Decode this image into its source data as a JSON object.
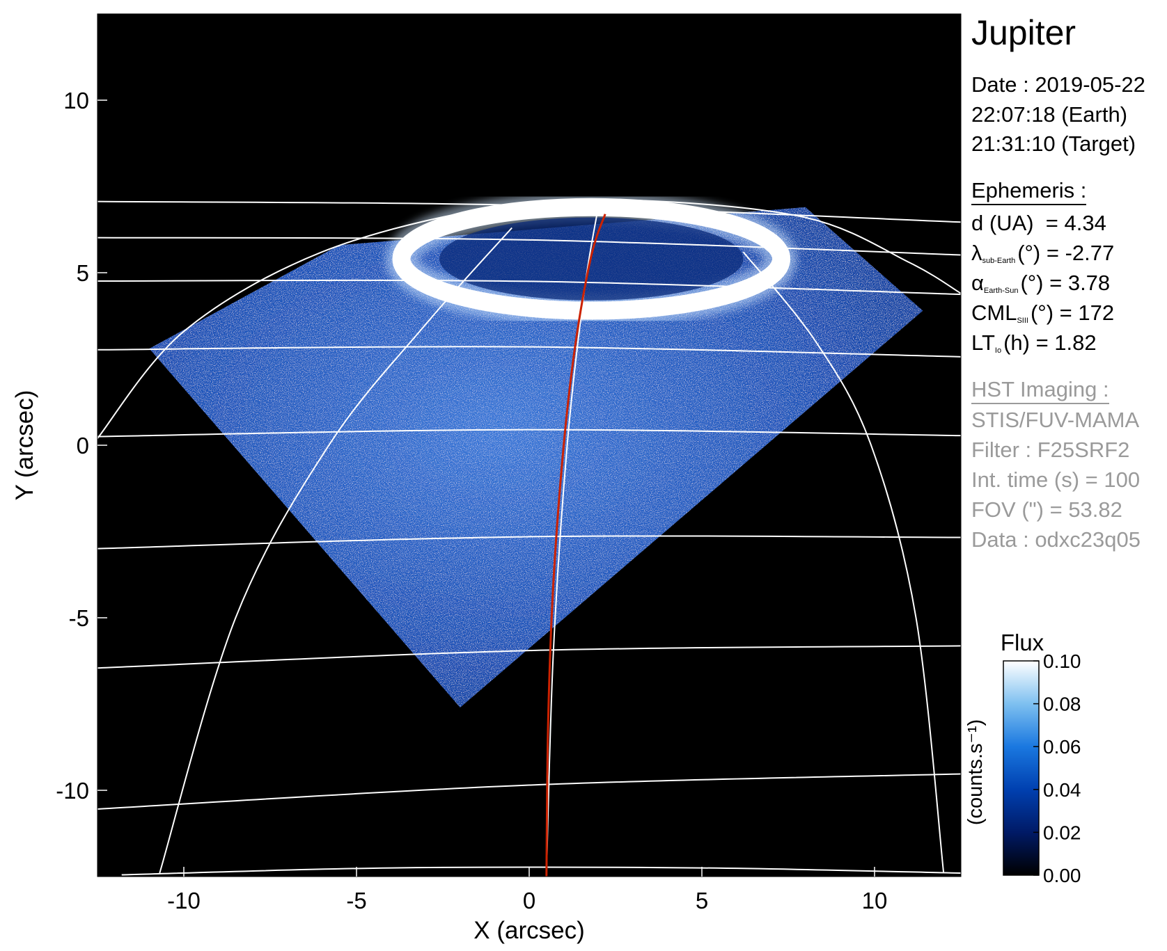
{
  "panel": {
    "title": "Jupiter",
    "date": "Date : 2019-05-22",
    "time_earth": "22:07:18 (Earth)",
    "time_target": "21:31:10 (Target)",
    "ephemeris_heading": "Ephemeris :",
    "ephemeris": [
      {
        "sym": "d (UA)",
        "sub": "",
        "rest": "  = 4.34"
      },
      {
        "sym": "λ",
        "sub": "sub-Earth",
        "rest": "(°) = -2.77"
      },
      {
        "sym": "α",
        "sub": "Earth-Sun",
        "rest": "(°) = 3.78"
      },
      {
        "sym": "CML",
        "sub": "SIII",
        "rest": "(°) = 172"
      },
      {
        "sym": "LT",
        "sub": "Io",
        "rest": "(h) = 1.82"
      }
    ],
    "hst_heading": "HST Imaging :",
    "hst": [
      "STIS/FUV-MAMA",
      "Filter : F25SRF2",
      "Int. time (s) = 100",
      "FOV (\") = 53.82",
      "Data : odxc23q05"
    ]
  },
  "chart_data": {
    "type": "heatmap",
    "title": "Jupiter",
    "xlabel": "X (arcsec)",
    "ylabel": "Y (arcsec)",
    "xlim": [
      -12.5,
      12.5
    ],
    "ylim": [
      -12.5,
      12.5
    ],
    "xticks": [
      -10,
      -5,
      0,
      5,
      10
    ],
    "yticks": [
      -10,
      -5,
      0,
      5,
      10
    ],
    "grid": true,
    "background_color": "#000000",
    "grid_color": "#ffffff",
    "track_color": "#cc2200",
    "colorbar": {
      "title": "Flux",
      "label": "(counts.s⁻¹)",
      "range": [
        0.0,
        0.1
      ],
      "ticks": [
        "0.00",
        "0.02",
        "0.04",
        "0.06",
        "0.08",
        "0.10"
      ],
      "colors": [
        "#000000",
        "#001a66",
        "#0040b0",
        "#1a78e0",
        "#7ec0f0",
        "#ffffff"
      ]
    },
    "illuminated_region": [
      [
        -2,
        -7.6
      ],
      [
        -11,
        2.8
      ],
      [
        -5.5,
        5.8
      ],
      [
        8,
        6.9
      ],
      [
        11.4,
        3.9
      ]
    ],
    "auroral_oval": {
      "center": [
        1.8,
        5.4
      ],
      "rx": 5.5,
      "ry": 1.5
    },
    "latitude_lines_y": [
      -9.9,
      -6,
      -2.7,
      0.4,
      2.8,
      4.7,
      5.9,
      6.9
    ],
    "meridians": [
      [
        [
          -10.7,
          -12.4
        ],
        [
          -8.5,
          -5
        ],
        [
          -5.8,
          0
        ],
        [
          -3,
          3.5
        ],
        [
          -0.5,
          6.3
        ]
      ],
      [
        [
          0.5,
          -12.4
        ],
        [
          0.7,
          -6
        ],
        [
          1.1,
          0
        ],
        [
          1.6,
          4.5
        ],
        [
          2,
          6.9
        ]
      ],
      [
        [
          12,
          -12.4
        ],
        [
          11.2,
          -5
        ],
        [
          9.9,
          0
        ],
        [
          8.3,
          3
        ],
        [
          6.2,
          5.6
        ]
      ]
    ],
    "limb": [
      [
        -12.5,
        0.2
      ],
      [
        -10,
        3.3
      ],
      [
        -6,
        5.6
      ],
      [
        -1,
        6.9
      ],
      [
        3,
        7.1
      ],
      [
        8,
        6.6
      ],
      [
        11,
        5.3
      ],
      [
        12.5,
        4.4
      ]
    ],
    "lower_limb": [
      [
        -11.8,
        -12.45
      ],
      [
        -4,
        -12.25
      ],
      [
        5,
        -12.25
      ],
      [
        12.5,
        -12.4
      ]
    ],
    "io_footprint_track": [
      [
        0.5,
        -12.5
      ],
      [
        0.55,
        -8
      ],
      [
        0.7,
        -4
      ],
      [
        1,
        0
      ],
      [
        1.35,
        3
      ],
      [
        1.8,
        5.5
      ],
      [
        2.2,
        6.7
      ]
    ]
  }
}
